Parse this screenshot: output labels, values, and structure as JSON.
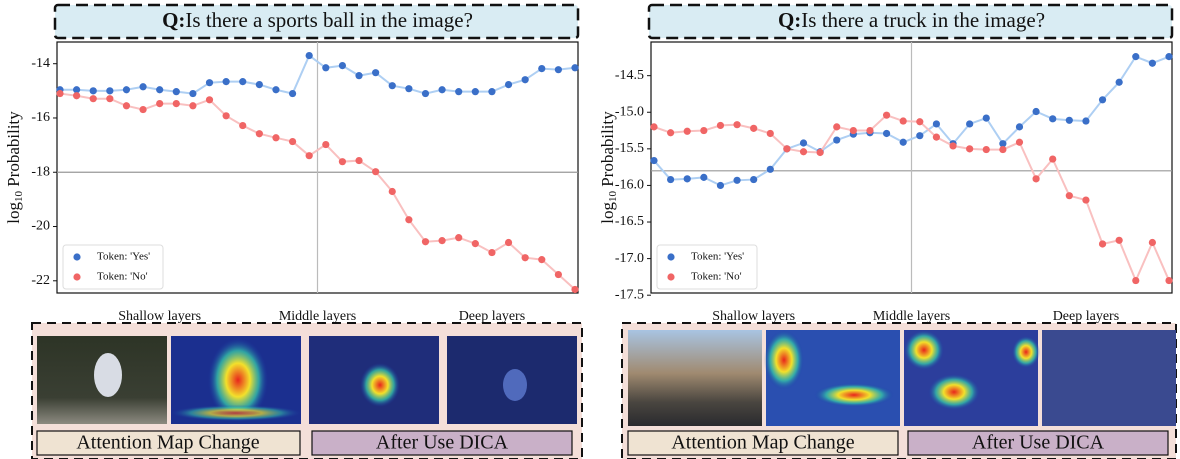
{
  "chart_data": [
    {
      "type": "line",
      "question_prefix": "Q:",
      "question": "Is there a sports ball in the image?",
      "ylabel": {
        "base": "log",
        "subscript": "10",
        "text": "Probability"
      },
      "ylim": [
        -22.45,
        -13.2
      ],
      "yticks": [
        -14,
        -16,
        -18,
        -20,
        -22
      ],
      "hline": -18,
      "vline": 15.5,
      "x_region_labels": [
        "Shallow layers",
        "Middle layers",
        "Deep layers"
      ],
      "legend": "lower left",
      "series": [
        {
          "name": "Token: 'Yes'",
          "color": "#3a6fc8",
          "line_color": "#aecff3",
          "values": [
            -14.96,
            -14.96,
            -15.0,
            -15.0,
            -14.96,
            -14.85,
            -14.96,
            -15.03,
            -15.1,
            -14.7,
            -14.66,
            -14.66,
            -14.77,
            -14.96,
            -15.1,
            -13.7,
            -14.15,
            -14.07,
            -14.44,
            -14.33,
            -14.81,
            -14.92,
            -15.1,
            -14.96,
            -15.03,
            -15.03,
            -15.03,
            -14.77,
            -14.59,
            -14.18,
            -14.22,
            -14.15
          ]
        },
        {
          "name": "Token: 'No'",
          "color": "#f06565",
          "line_color": "#f9c0c0",
          "values": [
            -15.1,
            -15.18,
            -15.29,
            -15.29,
            -15.55,
            -15.69,
            -15.47,
            -15.47,
            -15.55,
            -15.33,
            -15.92,
            -16.28,
            -16.58,
            -16.73,
            -16.87,
            -17.39,
            -16.98,
            -17.61,
            -17.57,
            -17.98,
            -18.71,
            -19.75,
            -20.56,
            -20.52,
            -20.41,
            -20.63,
            -20.96,
            -20.59,
            -21.15,
            -21.22,
            -21.77,
            -22.32
          ]
        }
      ],
      "annotations": [
        "Attention Map Change",
        "After Use DICA"
      ]
    },
    {
      "type": "line",
      "question_prefix": "Q:",
      "question": "Is there a truck in the image?",
      "ylabel": {
        "base": "log",
        "subscript": "10",
        "text": "Probability"
      },
      "ylim": [
        -17.47,
        -14.04
      ],
      "yticks": [
        -14.5,
        {
          "value": -15,
          "label": "-15.0"
        },
        -15.5,
        {
          "value": -16,
          "label": "-16.0"
        },
        -16.5,
        {
          "value": -17,
          "label": "-17.0"
        },
        -17.5
      ],
      "hline": -15.8,
      "vline": 15.5,
      "x_region_labels": [
        "Shallow layers",
        "Middle layers",
        "Deep layers"
      ],
      "legend": "lower left",
      "series": [
        {
          "name": "Token: 'Yes'",
          "color": "#3a6fc8",
          "line_color": "#aecff3",
          "values": [
            -15.66,
            -15.92,
            -15.91,
            -15.89,
            -16.0,
            -15.93,
            -15.92,
            -15.78,
            -15.5,
            -15.42,
            -15.54,
            -15.38,
            -15.3,
            -15.28,
            -15.29,
            -15.41,
            -15.32,
            -15.16,
            -15.43,
            -15.16,
            -15.08,
            -15.43,
            -15.2,
            -14.99,
            -15.09,
            -15.11,
            -15.12,
            -14.83,
            -14.59,
            -14.24,
            -14.33,
            -14.24
          ]
        },
        {
          "name": "Token: 'No'",
          "color": "#f06565",
          "line_color": "#f9c0c0",
          "values": [
            -15.2,
            -15.28,
            -15.26,
            -15.25,
            -15.18,
            -15.17,
            -15.22,
            -15.29,
            -15.5,
            -15.54,
            -15.55,
            -15.2,
            -15.25,
            -15.25,
            -15.04,
            -15.12,
            -15.13,
            -15.34,
            -15.46,
            -15.5,
            -15.51,
            -15.51,
            -15.41,
            -15.91,
            -15.64,
            -16.14,
            -16.2,
            -16.8,
            -16.75,
            -17.3,
            -16.78,
            -17.3
          ]
        }
      ],
      "annotations": [
        "Attention Map Change",
        "After Use DICA"
      ]
    }
  ]
}
